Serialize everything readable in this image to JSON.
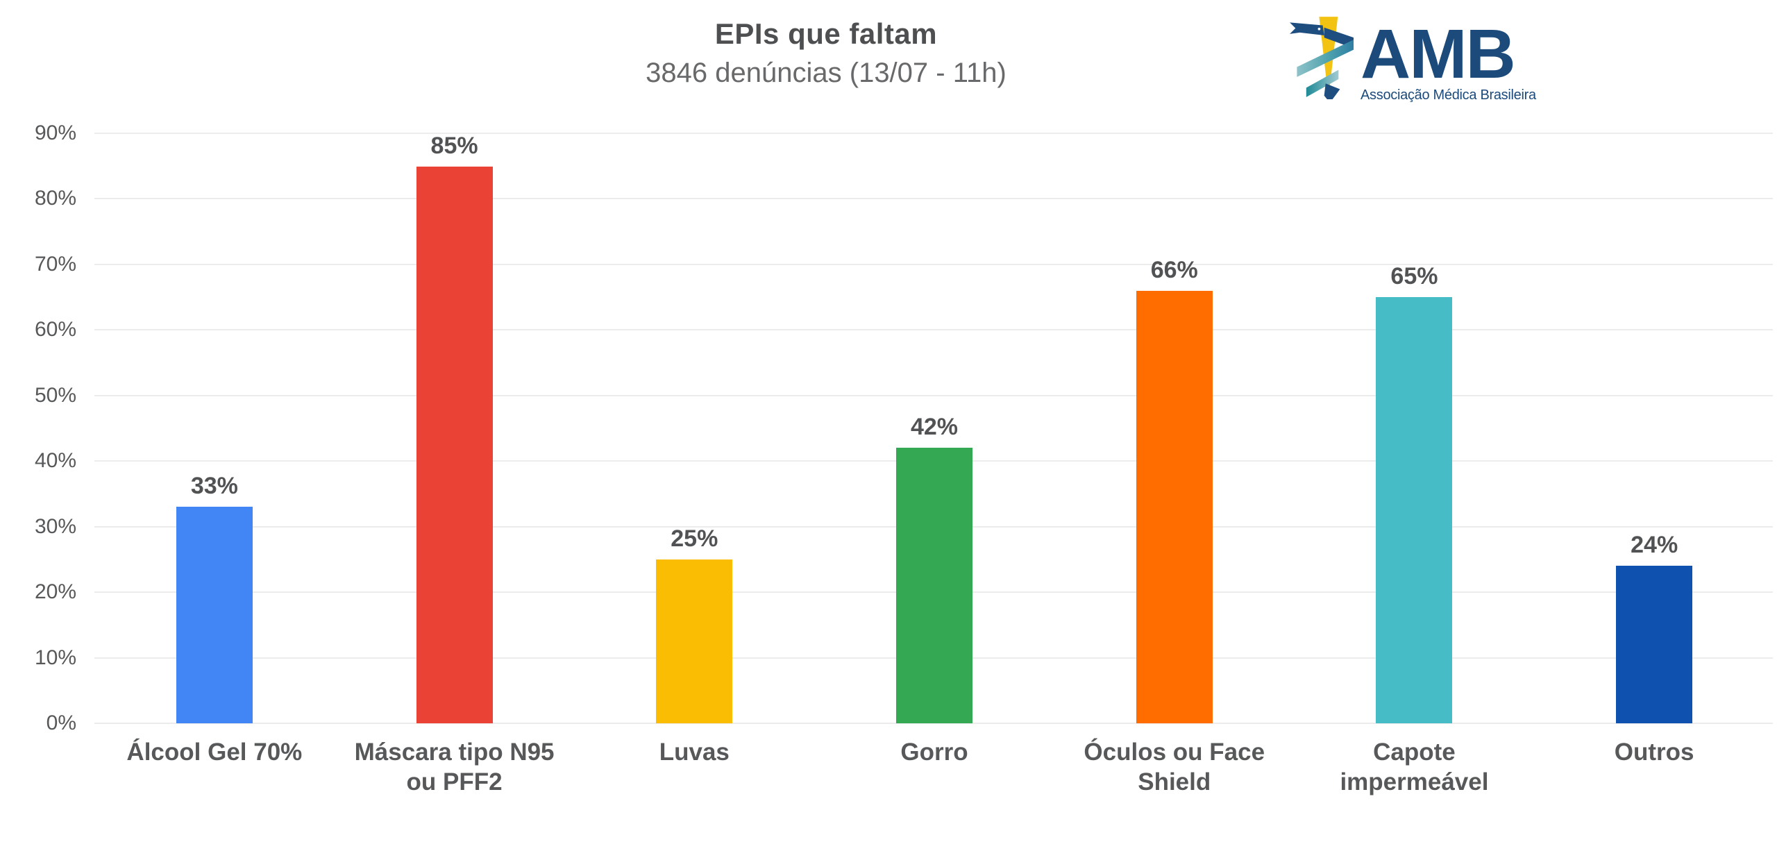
{
  "chart_data": {
    "type": "bar",
    "title": "EPIs que faltam",
    "subtitle": "3846 denúncias (13/07 - 11h)",
    "categories": [
      "Álcool Gel 70%",
      "Máscara tipo N95\nou PFF2",
      "Luvas",
      "Gorro",
      "Óculos ou Face\nShield",
      "Capote\nimpermeável",
      "Outros"
    ],
    "values": [
      33,
      85,
      25,
      42,
      66,
      65,
      24
    ],
    "value_labels": [
      "33%",
      "85%",
      "25%",
      "42%",
      "66%",
      "65%",
      "24%"
    ],
    "bar_colors": [
      "#4285F4",
      "#EA4335",
      "#FBBC04",
      "#34A853",
      "#FF6D01",
      "#46BDC6",
      "#0F51AE"
    ],
    "xlabel": "",
    "ylabel": "",
    "ylim": [
      0,
      90
    ],
    "y_ticks": [
      "0%",
      "10%",
      "20%",
      "30%",
      "40%",
      "50%",
      "60%",
      "70%",
      "80%",
      "90%"
    ],
    "grid": true,
    "legend": "none"
  },
  "logo": {
    "text": "AMB",
    "tagline": "Associação Médica Brasileira",
    "brand_color": "#1B4A7B",
    "icon": "caduceus-icon",
    "icon_colors": {
      "staff_yellow": "#F3C313",
      "ribbon_navy": "#1D4E7F",
      "ribbon_teal_dark": "#2E8799",
      "ribbon_teal_light": "#9FCAD1"
    }
  },
  "styles": {
    "text_color": "#57585A",
    "grid_color": "#ECECEC",
    "title_color": "#4E4F51",
    "subtitle_color": "#68696B",
    "background": "#FFFFFF"
  }
}
